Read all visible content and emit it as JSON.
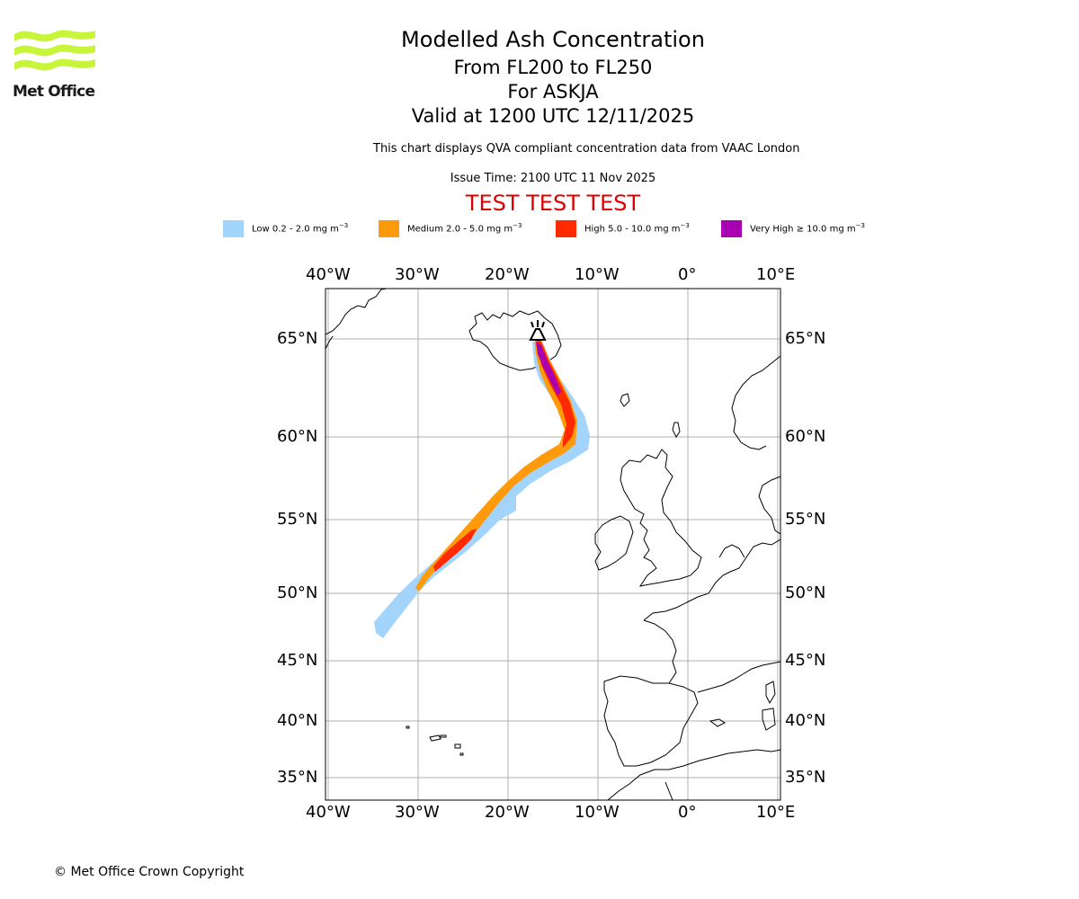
{
  "logo": {
    "text": "Met Office",
    "color": "#c8f53a"
  },
  "header": {
    "title": "Modelled Ash Concentration",
    "level_range": "From FL200 to FL250",
    "volcano": "For ASKJA",
    "valid_time": "Valid at 1200 UTC 12/11/2025",
    "description": "This chart displays QVA compliant concentration data from VAAC London",
    "issue_time": "Issue Time: 2100 UTC 11 Nov 2025",
    "test_banner": "TEST TEST TEST",
    "test_color": "#dd0000"
  },
  "legend": [
    {
      "label": "Low 0.2 - 2.0 mg m",
      "sup": "−3",
      "color": "#a3d4fc"
    },
    {
      "label": "Medium 2.0 - 5.0 mg m",
      "sup": "−3",
      "color": "#ff9a0a"
    },
    {
      "label": "High 5.0 - 10.0 mg m",
      "sup": "−3",
      "color": "#ff2a00"
    },
    {
      "label": "Very High  ≥  10.0 mg m",
      "sup": "−3",
      "color": "#a800b0"
    }
  ],
  "map": {
    "longitude_labels": [
      "40°W",
      "30°W",
      "20°W",
      "10°W",
      "0°",
      "10°E"
    ],
    "latitude_labels": [
      "65°N",
      "60°N",
      "55°N",
      "50°N",
      "45°N",
      "40°N",
      "35°N"
    ],
    "volcano_marker": "volcano-icon"
  },
  "footer": {
    "copyright": "© Met Office Crown Copyright"
  }
}
